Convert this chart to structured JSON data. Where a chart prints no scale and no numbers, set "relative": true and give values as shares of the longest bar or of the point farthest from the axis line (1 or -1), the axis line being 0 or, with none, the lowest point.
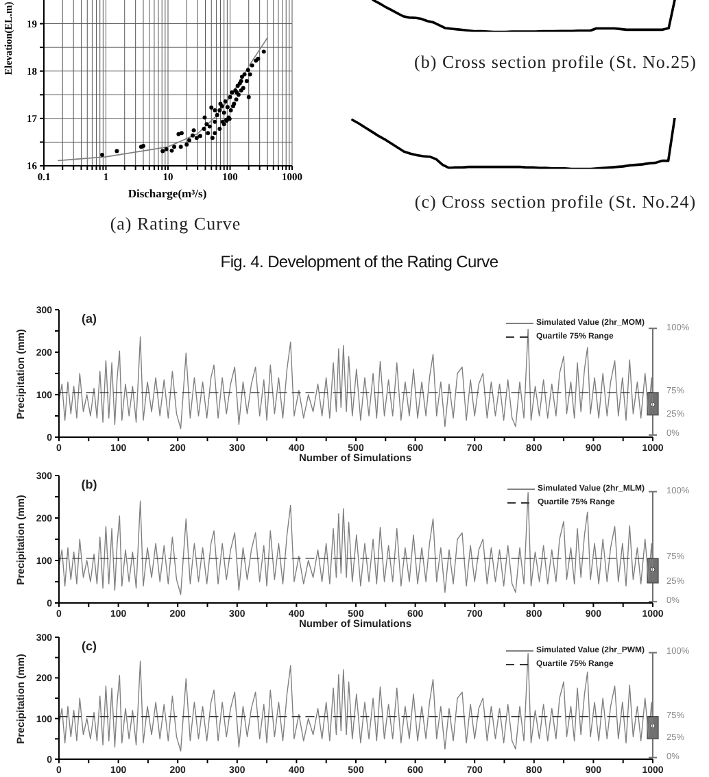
{
  "chart_data": [
    {
      "type": "scatter",
      "xlabel": "Discharge(m³/s)",
      "ylabel": "Elevation(EL.m)",
      "annotations": [
        "(a) Rating Curve"
      ],
      "log": "x",
      "xlim": [
        0.1,
        1000
      ],
      "ylim": [
        16,
        19.5
      ],
      "xticks": [
        0.1,
        {
          "value": 0.2,
          "label": null
        },
        {
          "value": 0.3,
          "label": null
        },
        {
          "value": 0.4,
          "label": null
        },
        {
          "value": 0.5,
          "label": null
        },
        {
          "value": 0.6,
          "label": null
        },
        {
          "value": 0.7,
          "label": null
        },
        {
          "value": 0.8,
          "label": null
        },
        {
          "value": 0.9,
          "label": null
        },
        1,
        {
          "value": 2,
          "label": null
        },
        {
          "value": 3,
          "label": null
        },
        {
          "value": 4,
          "label": null
        },
        {
          "value": 5,
          "label": null
        },
        {
          "value": 6,
          "label": null
        },
        {
          "value": 7,
          "label": null
        },
        {
          "value": 8,
          "label": null
        },
        {
          "value": 9,
          "label": null
        },
        10,
        {
          "value": 20,
          "label": null
        },
        {
          "value": 30,
          "label": null
        },
        {
          "value": 40,
          "label": null
        },
        {
          "value": 50,
          "label": null
        },
        {
          "value": 60,
          "label": null
        },
        {
          "value": 70,
          "label": null
        },
        {
          "value": 80,
          "label": null
        },
        {
          "value": 90,
          "label": null
        },
        100,
        {
          "value": 200,
          "label": null
        },
        {
          "value": 300,
          "label": null
        },
        {
          "value": 400,
          "label": null
        },
        {
          "value": 500,
          "label": null
        },
        {
          "value": 600,
          "label": null
        },
        {
          "value": 700,
          "label": null
        },
        {
          "value": 800,
          "label": null
        },
        {
          "value": 900,
          "label": null
        },
        1000
      ],
      "yticks": [
        16,
        {
          "value": 16.5,
          "label": null
        },
        17,
        {
          "value": 17.5,
          "label": null
        },
        18,
        {
          "value": 18.5,
          "label": null
        },
        19
      ],
      "grid": true,
      "marker": "circle",
      "series": [
        {
          "type": "scatter",
          "color": "#000000",
          "x": [
            0.87,
            1.5,
            3.7,
            4,
            8.2,
            9.4,
            11.5,
            12.6,
            14.8,
            16.6,
            16.1,
            20,
            22,
            25,
            26,
            29,
            33,
            38,
            39,
            42,
            47,
            50,
            52,
            57,
            62,
            68,
            70,
            76,
            80,
            84,
            87,
            91,
            95,
            100,
            103,
            108,
            116,
            122,
            126,
            133,
            137,
            144,
            151,
            156,
            163,
            171,
            186,
            195,
            200,
            210,
            227,
            261,
            283,
            350,
            57,
            74,
            112,
            128,
            151,
            80,
            68,
            57,
            44,
            88,
            98
          ],
          "values": [
            16.23,
            16.31,
            16.4,
            16.42,
            16.31,
            16.35,
            16.32,
            16.4,
            16.67,
            16.69,
            16.4,
            16.45,
            16.54,
            16.64,
            16.75,
            16.59,
            16.63,
            16.78,
            17.02,
            16.88,
            16.83,
            17.23,
            16.59,
            16.93,
            17.07,
            17.17,
            17.31,
            16.93,
            17.12,
            17.36,
            16.97,
            17.24,
            17.02,
            17.45,
            17.17,
            17.55,
            17.31,
            17.59,
            17.4,
            17.69,
            17.5,
            17.74,
            17.59,
            17.88,
            17.64,
            17.93,
            17.79,
            18.02,
            17.45,
            17.93,
            18.12,
            18.22,
            18.26,
            18.41,
            17.17,
            17.26,
            17.26,
            17.55,
            17.79,
            16.88,
            16.78,
            16.69,
            16.69,
            16.95,
            16.99
          ]
        },
        {
          "type": "line",
          "color": "#808080",
          "marker": "none",
          "x": [
            0.17,
            1,
            10,
            30,
            60,
            100,
            200,
            400
          ],
          "values": [
            16.11,
            16.19,
            16.4,
            16.68,
            17.05,
            17.45,
            18.1,
            18.7
          ]
        }
      ]
    },
    {
      "type": "line",
      "relative": true,
      "annotations": [
        "(b) Cross section profile (St. No.25)"
      ],
      "color": "#000000",
      "categories": [
        null,
        null,
        null,
        null,
        null,
        null,
        null,
        null,
        null,
        null,
        null,
        null,
        null,
        null,
        null,
        null,
        null,
        null,
        null,
        null,
        null,
        null,
        null,
        null,
        null,
        null,
        null,
        null,
        null,
        null,
        null,
        null,
        null,
        null,
        null,
        null,
        null,
        null,
        null,
        null,
        null,
        null,
        null,
        null,
        null,
        null,
        null,
        null,
        null,
        null,
        null
      ],
      "values": [
        1,
        0.9,
        0.79,
        0.69,
        0.59,
        0.49,
        0.45,
        0.44,
        0.41,
        0.34,
        0.3,
        0.21,
        0.12,
        0.1,
        0.08,
        0.06,
        0.04,
        0.02,
        0.02,
        0.01,
        0,
        0,
        0,
        0.01,
        0.01,
        0.01,
        0.01,
        0.01,
        0.02,
        0.02,
        0.02,
        0.03,
        0.03,
        0.03,
        0.04,
        0.04,
        0.04,
        0.11,
        0.11,
        0.11,
        0.11,
        0.09,
        0.07,
        0.07,
        0.07,
        0.07,
        0.07,
        0.07,
        0.07,
        0.12,
        1
      ]
    },
    {
      "type": "line",
      "relative": true,
      "annotations": [
        "(c) Cross section profile (St. No.24)"
      ],
      "color": "#000000",
      "categories": [
        null,
        null,
        null,
        null,
        null,
        null,
        null,
        null,
        null,
        null,
        null,
        null,
        null,
        null,
        null,
        null,
        null,
        null,
        null,
        null,
        null,
        null,
        null,
        null,
        null,
        null,
        null,
        null,
        null,
        null,
        null,
        null,
        null,
        null,
        null,
        null,
        null,
        null,
        null,
        null,
        null,
        null,
        null,
        null,
        null,
        null,
        null,
        null,
        null,
        null,
        null
      ],
      "values": [
        0.96,
        0.89,
        0.81,
        0.73,
        0.65,
        0.58,
        0.5,
        0.42,
        0.34,
        0.3,
        0.27,
        0.25,
        0.24,
        0.19,
        0.08,
        0.02,
        0.03,
        0.03,
        0.04,
        0.04,
        0.04,
        0.04,
        0.04,
        0.04,
        0.04,
        0.04,
        0.04,
        0.03,
        0.03,
        0.02,
        0.02,
        0.01,
        0.01,
        0.01,
        0,
        0,
        0,
        0,
        0.01,
        0.02,
        0.03,
        0.04,
        0.05,
        0.07,
        0.08,
        0.09,
        0.11,
        0.12,
        0.16,
        0.16,
        1
      ]
    },
    {
      "type": "other",
      "annotations": [
        "Fig. 4. Development of the Rating Curve"
      ]
    },
    {
      "type": "line",
      "title": "(a)",
      "xlabel": "Number of Simulations",
      "ylabel": "Precipitation (mm)",
      "xlim": [
        0,
        1000
      ],
      "ylim": [
        0,
        300
      ],
      "xticks": [
        0,
        {
          "value": 50,
          "label": null
        },
        100,
        {
          "value": 150,
          "label": null
        },
        200,
        {
          "value": 250,
          "label": null
        },
        300,
        {
          "value": 350,
          "label": null
        },
        400,
        {
          "value": 450,
          "label": null
        },
        500,
        {
          "value": 550,
          "label": null
        },
        600,
        {
          "value": 650,
          "label": null
        },
        700,
        {
          "value": 750,
          "label": null
        },
        800,
        {
          "value": 850,
          "label": null
        },
        900,
        {
          "value": 950,
          "label": null
        },
        1000
      ],
      "yticks": [
        0,
        {
          "value": 50,
          "label": null
        },
        100,
        {
          "value": 150,
          "label": null
        },
        200,
        {
          "value": 250,
          "label": null
        },
        300
      ],
      "legend": "top right",
      "annotations": [
        "0%",
        "25%",
        "75%",
        "100%"
      ],
      "x": [
        0,
        5,
        10,
        15,
        20,
        25,
        30,
        35,
        41,
        47,
        53,
        59,
        64,
        69,
        74,
        79,
        84,
        89,
        94,
        98,
        102,
        106,
        112,
        118,
        124,
        130,
        137,
        142,
        149,
        156,
        163,
        170,
        177,
        184,
        191,
        198,
        205,
        214,
        221,
        228,
        235,
        242,
        249,
        256,
        261,
        268,
        275,
        282,
        289,
        296,
        303,
        310,
        317,
        324,
        331,
        338,
        345,
        350,
        356,
        363,
        370,
        377,
        384,
        390,
        396,
        404,
        412,
        420,
        428,
        436,
        443,
        450,
        456,
        462,
        467,
        471,
        475,
        479,
        484,
        488,
        494,
        501,
        508,
        515,
        522,
        529,
        535,
        541,
        548,
        555,
        562,
        569,
        576,
        583,
        590,
        597,
        604,
        611,
        618,
        624,
        630,
        636,
        643,
        650,
        657,
        664,
        671,
        679,
        686,
        693,
        700,
        707,
        714,
        721,
        728,
        735,
        742,
        749,
        756,
        763,
        769,
        776,
        783,
        790,
        795,
        802,
        809,
        816,
        823,
        830,
        837,
        843,
        850,
        855,
        862,
        868,
        873,
        879,
        885,
        890,
        895,
        902,
        909,
        916,
        923,
        929,
        936,
        942,
        949,
        955,
        961,
        967,
        974,
        980,
        987,
        993,
        998,
        1000
      ],
      "series": [
        {
          "name": "Simulated Value (2hr_MOM)",
          "color": "#808080",
          "values": [
            85,
            125,
            40,
            130,
            55,
            120,
            45,
            150,
            60,
            100,
            50,
            115,
            45,
            155,
            35,
            180,
            45,
            175,
            30,
            140,
            203,
            40,
            125,
            50,
            120,
            35,
            236,
            40,
            130,
            60,
            140,
            50,
            135,
            45,
            155,
            55,
            20,
            198,
            45,
            140,
            50,
            130,
            45,
            140,
            170,
            45,
            140,
            55,
            125,
            165,
            30,
            130,
            55,
            125,
            165,
            50,
            135,
            40,
            170,
            55,
            140,
            45,
            160,
            224,
            50,
            110,
            45,
            100,
            60,
            125,
            50,
            140,
            45,
            175,
            60,
            208,
            70,
            216,
            60,
            190,
            50,
            160,
            40,
            140,
            50,
            150,
            45,
            178,
            50,
            135,
            50,
            175,
            40,
            130,
            50,
            160,
            45,
            130,
            50,
            140,
            195,
            50,
            130,
            25,
            125,
            45,
            150,
            165,
            40,
            135,
            50,
            125,
            150,
            45,
            130,
            50,
            125,
            40,
            135,
            45,
            25,
            130,
            45,
            254,
            40,
            120,
            50,
            135,
            45,
            125,
            50,
            150,
            190,
            55,
            130,
            45,
            175,
            60,
            160,
            211,
            55,
            140,
            45,
            150,
            50,
            130,
            180,
            50,
            140,
            40,
            182,
            55,
            130,
            45,
            150,
            55,
            140,
            70
          ]
        },
        {
          "name": "Quartile 75% Range",
          "color": "#333333",
          "line_style": "dashed",
          "x": [
            0,
            1000
          ],
          "values": [
            105,
            105
          ]
        },
        {
          "type": "box",
          "color": "#707070",
          "x": [
            1000
          ],
          "boxes": [
            {
              "low": 5,
              "q1": 52,
              "q3": 105,
              "high": 256,
              "mean": 77
            }
          ]
        }
      ]
    },
    {
      "type": "line",
      "title": "(b)",
      "xlabel": "Number of Simulations",
      "ylabel": "Precipitation (mm)",
      "xlim": [
        0,
        1000
      ],
      "ylim": [
        0,
        300
      ],
      "xticks": [
        0,
        {
          "value": 50,
          "label": null
        },
        100,
        {
          "value": 150,
          "label": null
        },
        200,
        {
          "value": 250,
          "label": null
        },
        300,
        {
          "value": 350,
          "label": null
        },
        400,
        {
          "value": 450,
          "label": null
        },
        500,
        {
          "value": 550,
          "label": null
        },
        600,
        {
          "value": 650,
          "label": null
        },
        700,
        {
          "value": 750,
          "label": null
        },
        800,
        {
          "value": 850,
          "label": null
        },
        900,
        {
          "value": 950,
          "label": null
        },
        1000
      ],
      "yticks": [
        0,
        {
          "value": 50,
          "label": null
        },
        100,
        {
          "value": 150,
          "label": null
        },
        200,
        {
          "value": 250,
          "label": null
        },
        300
      ],
      "legend": "top right",
      "annotations": [
        "0%",
        "25%",
        "75%",
        "100%"
      ],
      "x": [
        0,
        5,
        10,
        15,
        20,
        25,
        30,
        35,
        41,
        47,
        53,
        59,
        64,
        69,
        74,
        79,
        84,
        89,
        94,
        98,
        102,
        106,
        112,
        118,
        124,
        130,
        137,
        142,
        149,
        156,
        163,
        170,
        177,
        184,
        191,
        198,
        205,
        214,
        221,
        228,
        235,
        242,
        249,
        256,
        261,
        268,
        275,
        282,
        289,
        296,
        303,
        310,
        317,
        324,
        331,
        338,
        345,
        350,
        356,
        363,
        370,
        377,
        384,
        390,
        396,
        404,
        412,
        420,
        428,
        436,
        443,
        450,
        456,
        462,
        467,
        471,
        475,
        479,
        484,
        488,
        494,
        501,
        508,
        515,
        522,
        529,
        535,
        541,
        548,
        555,
        562,
        569,
        576,
        583,
        590,
        597,
        604,
        611,
        618,
        624,
        630,
        636,
        643,
        650,
        657,
        664,
        671,
        679,
        686,
        693,
        700,
        707,
        714,
        721,
        728,
        735,
        742,
        749,
        756,
        763,
        769,
        776,
        783,
        790,
        795,
        802,
        809,
        816,
        823,
        830,
        837,
        843,
        850,
        855,
        862,
        868,
        873,
        879,
        885,
        890,
        895,
        902,
        909,
        916,
        923,
        929,
        936,
        942,
        949,
        955,
        961,
        967,
        974,
        980,
        987,
        993,
        998,
        1000
      ],
      "series": [
        {
          "name": "Simulated Value (2hr_MLM)",
          "color": "#808080",
          "values": [
            85,
            125,
            40,
            130,
            55,
            120,
            45,
            150,
            60,
            100,
            50,
            115,
            45,
            155,
            35,
            180,
            45,
            175,
            30,
            140,
            205,
            40,
            125,
            50,
            120,
            35,
            240,
            40,
            130,
            60,
            140,
            50,
            135,
            45,
            155,
            55,
            20,
            198,
            45,
            140,
            50,
            130,
            45,
            140,
            170,
            45,
            140,
            55,
            125,
            165,
            30,
            130,
            55,
            125,
            165,
            50,
            135,
            40,
            170,
            55,
            140,
            45,
            160,
            230,
            50,
            110,
            45,
            100,
            60,
            125,
            50,
            140,
            45,
            175,
            60,
            210,
            70,
            222,
            60,
            190,
            50,
            160,
            40,
            140,
            50,
            150,
            45,
            178,
            50,
            135,
            50,
            175,
            40,
            130,
            50,
            160,
            45,
            130,
            50,
            140,
            198,
            50,
            130,
            25,
            125,
            45,
            150,
            165,
            40,
            135,
            50,
            125,
            150,
            45,
            130,
            50,
            125,
            40,
            135,
            45,
            25,
            130,
            45,
            260,
            40,
            120,
            50,
            135,
            45,
            125,
            50,
            150,
            192,
            55,
            130,
            45,
            175,
            60,
            160,
            214,
            55,
            140,
            45,
            150,
            50,
            130,
            180,
            50,
            140,
            40,
            182,
            55,
            130,
            45,
            150,
            55,
            140,
            70
          ]
        },
        {
          "name": "Quartile 75% Range",
          "color": "#333333",
          "line_style": "dashed",
          "x": [
            0,
            1000
          ],
          "values": [
            105,
            105
          ]
        },
        {
          "type": "box",
          "color": "#707070",
          "x": [
            1000
          ],
          "boxes": [
            {
              "low": 3,
              "q1": 47,
              "q3": 105,
              "high": 262,
              "mean": 79
            }
          ]
        }
      ]
    },
    {
      "type": "line",
      "title": "(c)",
      "ylabel": "Precipitation (mm)",
      "xlim": [
        0,
        1000
      ],
      "ylim": [
        0,
        300
      ],
      "xticks": [
        0,
        {
          "value": 50,
          "label": null
        },
        100,
        {
          "value": 150,
          "label": null
        },
        200,
        {
          "value": 250,
          "label": null
        },
        300,
        {
          "value": 350,
          "label": null
        },
        400,
        {
          "value": 450,
          "label": null
        },
        500,
        {
          "value": 550,
          "label": null
        },
        600,
        {
          "value": 650,
          "label": null
        },
        700,
        {
          "value": 750,
          "label": null
        },
        800,
        {
          "value": 850,
          "label": null
        },
        900,
        {
          "value": 950,
          "label": null
        },
        1000
      ],
      "yticks": [
        0,
        {
          "value": 50,
          "label": null
        },
        100,
        {
          "value": 150,
          "label": null
        },
        200,
        {
          "value": 250,
          "label": null
        },
        300
      ],
      "legend": "top right",
      "annotations": [
        "0%",
        "25%",
        "75%",
        "100%"
      ],
      "x": [
        0,
        5,
        10,
        15,
        20,
        25,
        30,
        35,
        41,
        47,
        53,
        59,
        64,
        69,
        74,
        79,
        84,
        89,
        94,
        98,
        102,
        106,
        112,
        118,
        124,
        130,
        137,
        142,
        149,
        156,
        163,
        170,
        177,
        184,
        191,
        198,
        205,
        214,
        221,
        228,
        235,
        242,
        249,
        256,
        261,
        268,
        275,
        282,
        289,
        296,
        303,
        310,
        317,
        324,
        331,
        338,
        345,
        350,
        356,
        363,
        370,
        377,
        384,
        390,
        396,
        404,
        412,
        420,
        428,
        436,
        443,
        450,
        456,
        462,
        467,
        471,
        475,
        479,
        484,
        488,
        494,
        501,
        508,
        515,
        522,
        529,
        535,
        541,
        548,
        555,
        562,
        569,
        576,
        583,
        590,
        597,
        604,
        611,
        618,
        624,
        630,
        636,
        643,
        650,
        657,
        664,
        671,
        679,
        686,
        693,
        700,
        707,
        714,
        721,
        728,
        735,
        742,
        749,
        756,
        763,
        769,
        776,
        783,
        790,
        795,
        802,
        809,
        816,
        823,
        830,
        837,
        843,
        850,
        855,
        862,
        868,
        873,
        879,
        885,
        890,
        895,
        902,
        909,
        916,
        923,
        929,
        936,
        942,
        949,
        955,
        961,
        967,
        974,
        980,
        987,
        993,
        998,
        1000
      ],
      "series": [
        {
          "name": "Simulated Value (2hr_PWM)",
          "color": "#808080",
          "values": [
            85,
            125,
            40,
            130,
            55,
            120,
            45,
            150,
            60,
            100,
            50,
            115,
            45,
            155,
            35,
            180,
            45,
            175,
            30,
            140,
            206,
            40,
            125,
            50,
            120,
            35,
            241,
            40,
            130,
            60,
            140,
            50,
            135,
            45,
            155,
            55,
            20,
            198,
            45,
            140,
            50,
            130,
            45,
            140,
            170,
            45,
            140,
            55,
            125,
            165,
            30,
            130,
            55,
            125,
            165,
            50,
            135,
            40,
            170,
            55,
            140,
            45,
            160,
            230,
            50,
            110,
            45,
            100,
            60,
            125,
            50,
            140,
            45,
            175,
            60,
            208,
            70,
            220,
            60,
            190,
            50,
            160,
            40,
            140,
            50,
            150,
            45,
            178,
            50,
            135,
            50,
            175,
            40,
            130,
            50,
            160,
            45,
            130,
            50,
            140,
            196,
            50,
            130,
            25,
            125,
            45,
            150,
            165,
            40,
            135,
            50,
            125,
            150,
            45,
            130,
            50,
            125,
            40,
            135,
            45,
            25,
            130,
            45,
            260,
            40,
            120,
            50,
            135,
            45,
            125,
            50,
            150,
            190,
            55,
            130,
            45,
            175,
            60,
            160,
            214,
            55,
            140,
            45,
            150,
            50,
            130,
            180,
            50,
            140,
            40,
            182,
            55,
            130,
            45,
            150,
            55,
            140,
            70
          ]
        },
        {
          "name": "Quartile 75% Range",
          "color": "#333333",
          "line_style": "dashed",
          "x": [
            0,
            1000
          ],
          "values": [
            105,
            105
          ]
        },
        {
          "type": "box",
          "color": "#707070",
          "x": [
            1000
          ],
          "boxes": [
            {
              "low": 4,
              "q1": 50,
              "q3": 105,
              "high": 262,
              "mean": 82
            }
          ]
        }
      ]
    }
  ]
}
